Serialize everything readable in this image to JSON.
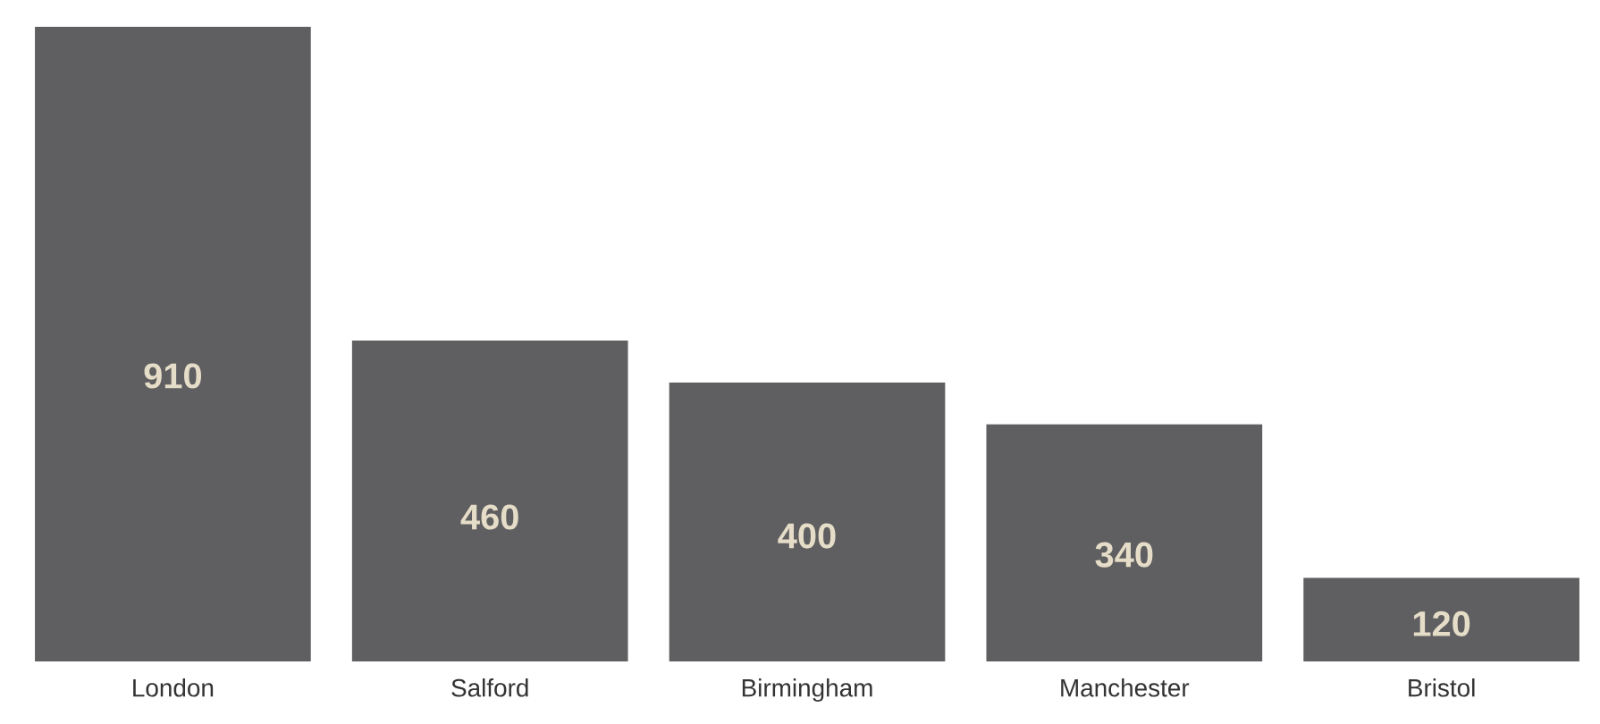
{
  "chart_data": {
    "type": "bar",
    "categories": [
      "London",
      "Salford",
      "Birmingham",
      "Manchester",
      "Bristol"
    ],
    "values": [
      910,
      460,
      400,
      340,
      120
    ],
    "color": "#5f5f61",
    "data_labels": true
  }
}
